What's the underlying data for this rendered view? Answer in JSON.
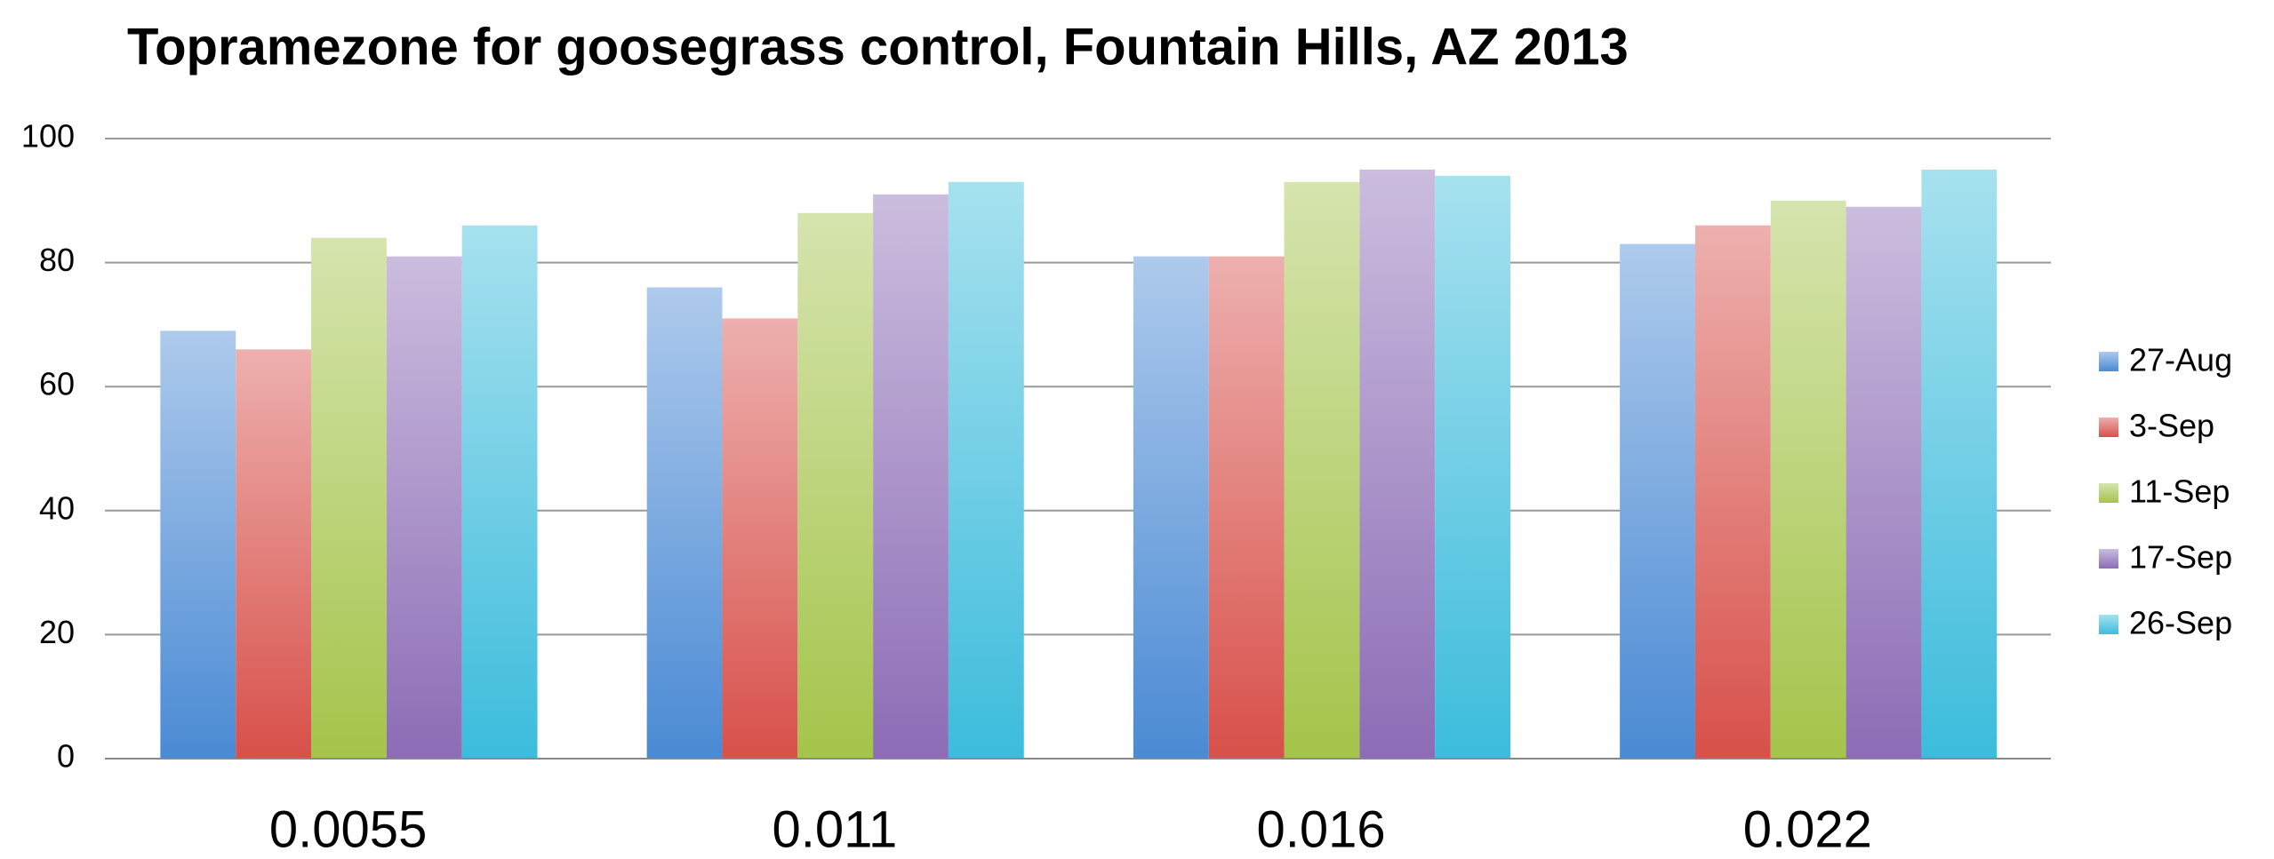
{
  "chart_data": {
    "type": "bar",
    "title": "Topramezone for goosegrass control, Fountain Hills, AZ 2013",
    "categories": [
      "0.0055",
      "0.011",
      "0.016",
      "0.022"
    ],
    "series": [
      {
        "name": "27-Aug",
        "color": "#4a8ad4",
        "values": [
          69,
          76,
          81,
          83
        ]
      },
      {
        "name": "3-Sep",
        "color": "#d8504a",
        "values": [
          66,
          71,
          81,
          86
        ]
      },
      {
        "name": "11-Sep",
        "color": "#a4c44a",
        "values": [
          84,
          88,
          93,
          90
        ]
      },
      {
        "name": "17-Sep",
        "color": "#8c6cb6",
        "values": [
          81,
          91,
          95,
          89
        ]
      },
      {
        "name": "26-Sep",
        "color": "#3cbcdc",
        "values": [
          86,
          93,
          94,
          95
        ]
      }
    ],
    "ylim": [
      0,
      100
    ],
    "yticks": [
      0,
      20,
      40,
      60,
      80,
      100
    ],
    "grid": true,
    "legend": "right"
  }
}
